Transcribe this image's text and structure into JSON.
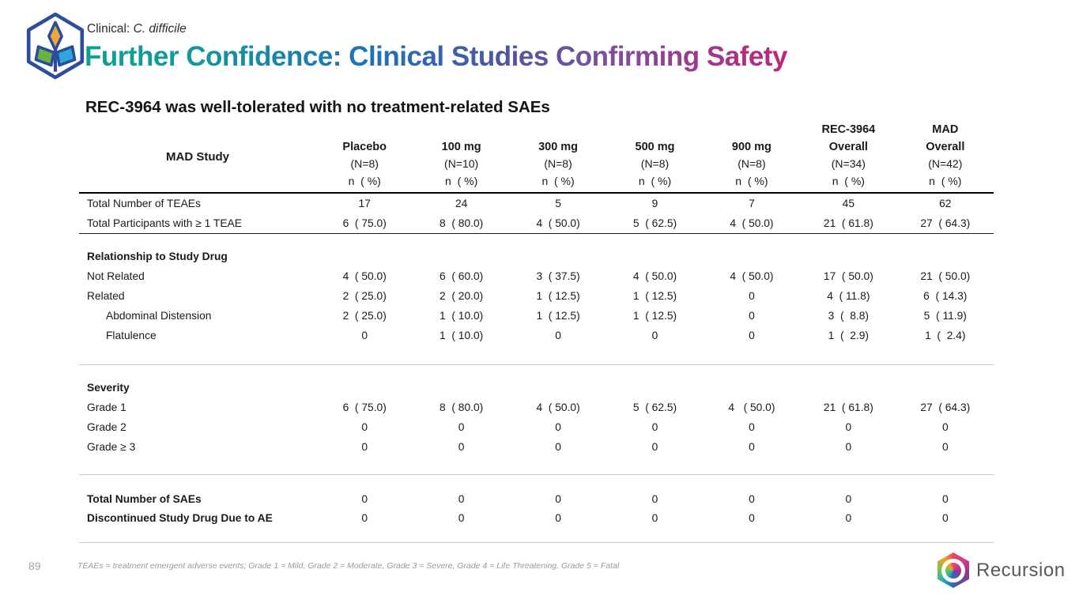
{
  "slide": {
    "eyebrow_prefix": "Clinical: ",
    "eyebrow_italic": "C. difficile",
    "title": "Further Confidence: Clinical Studies Confirming Safety",
    "subtitle": "REC-3964 was well-tolerated with no treatment-related SAEs",
    "title_gradient": [
      "#0EA18E",
      "#1E73B7",
      "#7C4FA0",
      "#C02478"
    ]
  },
  "table": {
    "label_header": "MAD Study",
    "np_label": "n  ( %)",
    "columns": [
      {
        "name_lines": [
          "Placebo"
        ],
        "n": "(N=8)"
      },
      {
        "name_lines": [
          "100 mg"
        ],
        "n": "(N=10)"
      },
      {
        "name_lines": [
          "300 mg"
        ],
        "n": "(N=8)"
      },
      {
        "name_lines": [
          "500 mg"
        ],
        "n": "(N=8)"
      },
      {
        "name_lines": [
          "900 mg"
        ],
        "n": "(N=8)"
      },
      {
        "name_lines": [
          "REC-3964",
          "Overall"
        ],
        "n": "(N=34)"
      },
      {
        "name_lines": [
          "MAD",
          "Overall"
        ],
        "n": "(N=42)"
      }
    ],
    "rows": [
      {
        "t": "row",
        "label": "Total Number of TEAEs",
        "bold": false,
        "indent": false,
        "values": [
          "17",
          "24",
          "5",
          "9",
          "7",
          "45",
          "62"
        ]
      },
      {
        "t": "row",
        "label": "Total Participants with ≥ 1 TEAE",
        "bold": false,
        "indent": false,
        "values": [
          "6  ( 75.0)",
          "8  ( 80.0)",
          "4  ( 50.0)",
          "5  ( 62.5)",
          "4  ( 50.0)",
          "21  ( 61.8)",
          "27  ( 64.3)"
        ]
      },
      {
        "t": "rule",
        "w": "dark"
      },
      {
        "t": "gap",
        "h": 17
      },
      {
        "t": "row",
        "label": "Relationship to Study Drug",
        "bold": true,
        "indent": false,
        "values": []
      },
      {
        "t": "row",
        "label": "Not Related",
        "bold": false,
        "indent": false,
        "values": [
          "4  ( 50.0)",
          "6  ( 60.0)",
          "3  ( 37.5)",
          "4  ( 50.0)",
          "4  ( 50.0)",
          "17  ( 50.0)",
          "21  ( 50.0)"
        ]
      },
      {
        "t": "row",
        "label": "Related",
        "bold": false,
        "indent": false,
        "values": [
          "2  ( 25.0)",
          "2  ( 20.0)",
          "1  ( 12.5)",
          "1  ( 12.5)",
          "0",
          "4  ( 11.8)",
          "6  ( 14.3)"
        ]
      },
      {
        "t": "row",
        "label": "Abdominal Distension",
        "bold": false,
        "indent": true,
        "values": [
          "2  ( 25.0)",
          "1  ( 10.0)",
          "1  ( 12.5)",
          "1  ( 12.5)",
          "0",
          "3  (  8.8)",
          "5  ( 11.9)"
        ]
      },
      {
        "t": "row",
        "label": "Flatulence",
        "bold": false,
        "indent": true,
        "values": [
          "0",
          "1  ( 10.0)",
          "0",
          "0",
          "0",
          "1  (  2.9)",
          "1  (  2.4)"
        ]
      },
      {
        "t": "gap",
        "h": 24
      },
      {
        "t": "rule",
        "w": "light"
      },
      {
        "t": "gap",
        "h": 17
      },
      {
        "t": "row",
        "label": "Severity",
        "bold": true,
        "indent": false,
        "values": []
      },
      {
        "t": "row",
        "label": "Grade 1",
        "bold": false,
        "indent": false,
        "values": [
          "6  ( 75.0)",
          "8  ( 80.0)",
          "4  ( 50.0)",
          "5  ( 62.5)",
          "4   ( 50.0)",
          "21  ( 61.8)",
          "27  ( 64.3)"
        ]
      },
      {
        "t": "row",
        "label": "Grade 2",
        "bold": false,
        "indent": false,
        "values": [
          "0",
          "0",
          "0",
          "0",
          "0",
          "0",
          "0"
        ]
      },
      {
        "t": "row",
        "label": "Grade ≥ 3",
        "bold": false,
        "indent": false,
        "values": [
          "0",
          "0",
          "0",
          "0",
          "0",
          "0",
          "0"
        ]
      },
      {
        "t": "gap",
        "h": 22
      },
      {
        "t": "rule",
        "w": "light"
      },
      {
        "t": "gap",
        "h": 18
      },
      {
        "t": "row",
        "label": "Total Number of SAEs",
        "bold": true,
        "indent": false,
        "values": [
          "0",
          "0",
          "0",
          "0",
          "0",
          "0",
          "0"
        ]
      },
      {
        "t": "row",
        "label": "Discontinued Study Drug Due to AE",
        "bold": true,
        "indent": false,
        "values": [
          "0",
          "0",
          "0",
          "0",
          "0",
          "0",
          "0"
        ]
      },
      {
        "t": "gap",
        "h": 18
      },
      {
        "t": "rule",
        "w": "light"
      }
    ]
  },
  "footer": {
    "page_number": "89",
    "footnote": "TEAEs = treatment emergent adverse events; Grade 1 = Mild, Grade 2 = Moderate, Grade 3 = Severe, Grade 4 = Life Threatening, Grade 5 = Fatal",
    "brand": "Recursion"
  }
}
